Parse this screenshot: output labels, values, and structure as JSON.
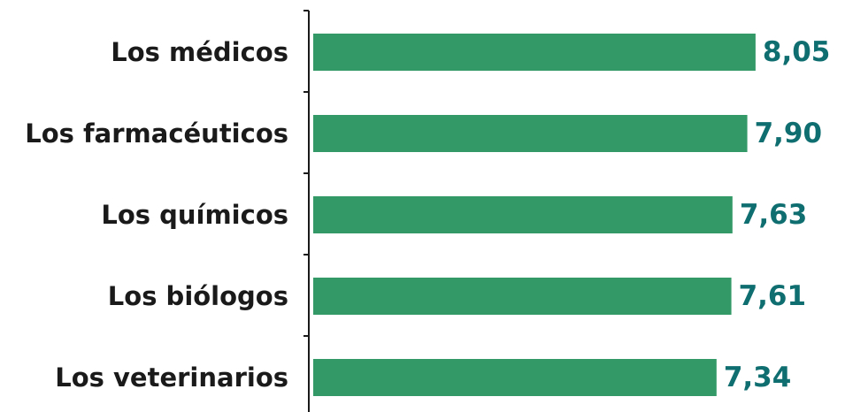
{
  "chart_data": {
    "type": "bar",
    "orientation": "horizontal",
    "categories": [
      "Los médicos",
      "Los farmacéuticos",
      "Los químicos",
      "Los biólogos",
      "Los veterinarios"
    ],
    "values": [
      8.05,
      7.9,
      7.63,
      7.61,
      7.34
    ],
    "value_labels": [
      "8,05",
      "7,90",
      "7,63",
      "7,61",
      "7,34"
    ],
    "title": "",
    "xlabel": "",
    "ylabel": "",
    "grid": false,
    "legend": "none",
    "colors": {
      "bar": "#339966",
      "value_label": "#0f6e70",
      "category_label": "#1a1a1a",
      "axis": "#1a1a1a"
    }
  }
}
